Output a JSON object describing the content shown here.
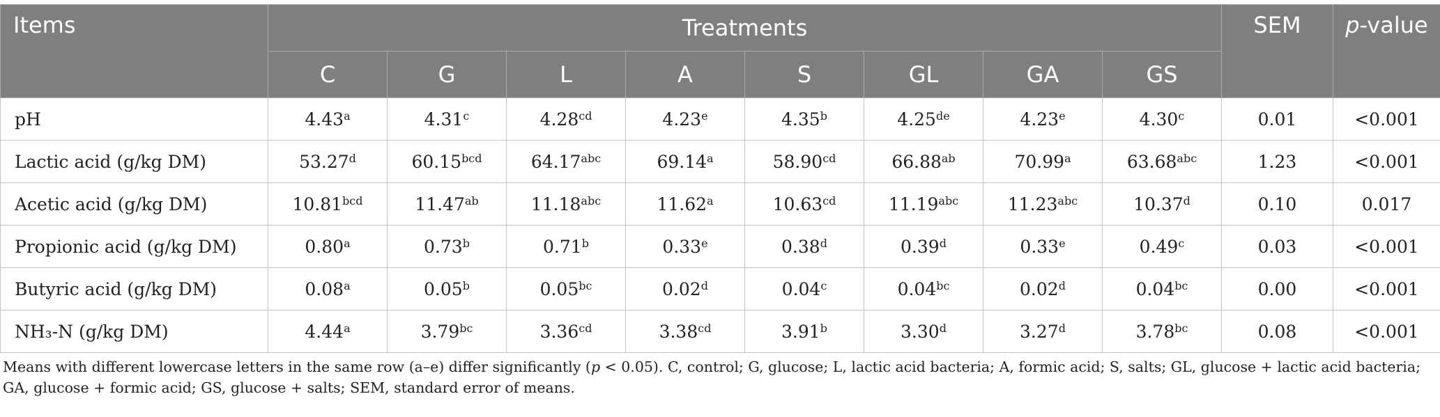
{
  "header": {
    "items": "Items",
    "treatments": "Treatments",
    "sem": "SEM",
    "p_italic": "p",
    "p_rest": "-value",
    "groups": [
      "C",
      "G",
      "L",
      "A",
      "S",
      "GL",
      "GA",
      "GS"
    ]
  },
  "rows": [
    {
      "label": "pH",
      "cells": [
        {
          "v": "4.43",
          "s": "a"
        },
        {
          "v": "4.31",
          "s": "c"
        },
        {
          "v": "4.28",
          "s": "cd"
        },
        {
          "v": "4.23",
          "s": "e"
        },
        {
          "v": "4.35",
          "s": "b"
        },
        {
          "v": "4.25",
          "s": "de"
        },
        {
          "v": "4.23",
          "s": "e"
        },
        {
          "v": "4.30",
          "s": "c"
        }
      ],
      "sem": "0.01",
      "p": "<0.001"
    },
    {
      "label": "Lactic acid (g/kg DM)",
      "cells": [
        {
          "v": "53.27",
          "s": "d"
        },
        {
          "v": "60.15",
          "s": "bcd"
        },
        {
          "v": "64.17",
          "s": "abc"
        },
        {
          "v": "69.14",
          "s": "a"
        },
        {
          "v": "58.90",
          "s": "cd"
        },
        {
          "v": "66.88",
          "s": "ab"
        },
        {
          "v": "70.99",
          "s": "a"
        },
        {
          "v": "63.68",
          "s": "abc"
        }
      ],
      "sem": "1.23",
      "p": "<0.001"
    },
    {
      "label": "Acetic acid (g/kg DM)",
      "cells": [
        {
          "v": "10.81",
          "s": "bcd"
        },
        {
          "v": "11.47",
          "s": "ab"
        },
        {
          "v": "11.18",
          "s": "abc"
        },
        {
          "v": "11.62",
          "s": "a"
        },
        {
          "v": "10.63",
          "s": "cd"
        },
        {
          "v": "11.19",
          "s": "abc"
        },
        {
          "v": "11.23",
          "s": "abc"
        },
        {
          "v": "10.37",
          "s": "d"
        }
      ],
      "sem": "0.10",
      "p": "0.017"
    },
    {
      "label": "Propionic acid (g/kg DM)",
      "cells": [
        {
          "v": "0.80",
          "s": "a"
        },
        {
          "v": "0.73",
          "s": "b"
        },
        {
          "v": "0.71",
          "s": "b"
        },
        {
          "v": "0.33",
          "s": "e"
        },
        {
          "v": "0.38",
          "s": "d"
        },
        {
          "v": "0.39",
          "s": "d"
        },
        {
          "v": "0.33",
          "s": "e"
        },
        {
          "v": "0.49",
          "s": "c"
        }
      ],
      "sem": "0.03",
      "p": "<0.001"
    },
    {
      "label": "Butyric acid (g/kg DM)",
      "cells": [
        {
          "v": "0.08",
          "s": "a"
        },
        {
          "v": "0.05",
          "s": "b"
        },
        {
          "v": "0.05",
          "s": "bc"
        },
        {
          "v": "0.02",
          "s": "d"
        },
        {
          "v": "0.04",
          "s": "c"
        },
        {
          "v": "0.04",
          "s": "bc"
        },
        {
          "v": "0.02",
          "s": "d"
        },
        {
          "v": "0.04",
          "s": "bc"
        }
      ],
      "sem": "0.00",
      "p": "<0.001"
    },
    {
      "label": "NH₃-N (g/kg DM)",
      "cells": [
        {
          "v": "4.44",
          "s": "a"
        },
        {
          "v": "3.79",
          "s": "bc"
        },
        {
          "v": "3.36",
          "s": "cd"
        },
        {
          "v": "3.38",
          "s": "cd"
        },
        {
          "v": "3.91",
          "s": "b"
        },
        {
          "v": "3.30",
          "s": "d"
        },
        {
          "v": "3.27",
          "s": "d"
        },
        {
          "v": "3.78",
          "s": "bc"
        }
      ],
      "sem": "0.08",
      "p": "<0.001"
    }
  ],
  "footnote": {
    "part1": "Means with different lowercase letters in the same row (a–e) differ significantly (",
    "p_italic": "p",
    "part2": " < 0.05). C, control; G, glucose; L, lactic acid bacteria; A, formic acid; S, salts; GL, glucose + lactic acid bacteria; GA, glucose + formic acid; GS, glucose + salts; SEM, standard error of means."
  }
}
